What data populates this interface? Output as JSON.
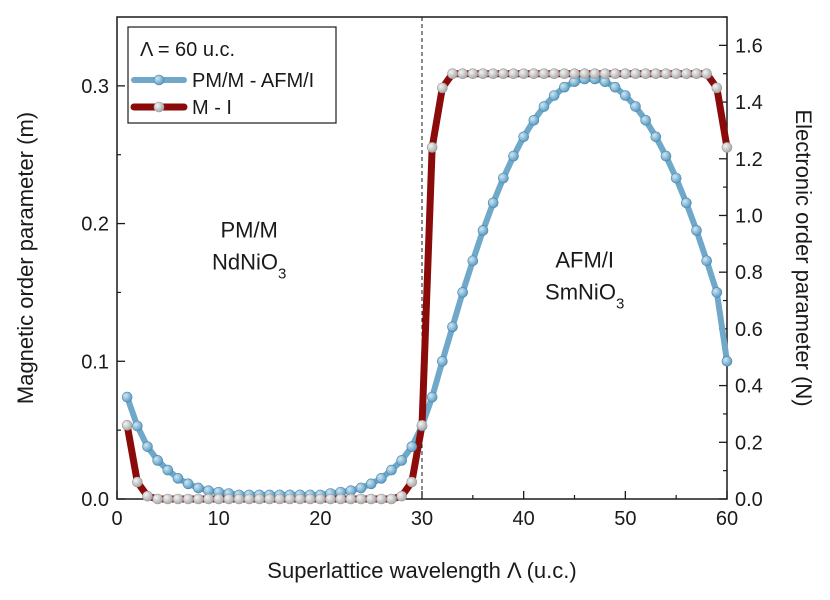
{
  "chart_data": {
    "type": "line",
    "title": "",
    "xlabel": "Superlattice wavelength Λ (u.c.)",
    "ylabel_left": "Magnetic order parameter (m)",
    "ylabel_right": "Electronic order parameter (N)",
    "xlim": [
      0,
      60
    ],
    "ylim_left": [
      0,
      0.35
    ],
    "ylim_right": [
      0,
      1.7
    ],
    "x_ticks": [
      "0",
      "10",
      "20",
      "30",
      "40",
      "50",
      "60"
    ],
    "y_left_ticks": [
      "0.0",
      "0.1",
      "0.2",
      "0.3"
    ],
    "y_right_ticks": [
      "0.0",
      "0.2",
      "0.4",
      "0.6",
      "0.8",
      "1.0",
      "1.2",
      "1.4",
      "1.6"
    ],
    "legend_title": "Λ = 60 u.c.",
    "legend_position": "top-left",
    "vline_x": 30,
    "annotations": [
      {
        "line1": "PM/M",
        "line2_base": "NdNiO",
        "line2_sub": "3",
        "x": 13,
        "y_left": 0.19
      },
      {
        "line1": "AFM/I",
        "line2_base": "SmNiO",
        "line2_sub": "3",
        "x": 46,
        "y_left": 0.168
      }
    ],
    "series": [
      {
        "name": "PM/M - AFM/I",
        "axis": "left",
        "line_color": "#6fa8c8",
        "marker_color": "#5b9dc3",
        "x": [
          1,
          2,
          3,
          4,
          5,
          6,
          7,
          8,
          9,
          10,
          11,
          12,
          13,
          14,
          15,
          16,
          17,
          18,
          19,
          20,
          21,
          22,
          23,
          24,
          25,
          26,
          27,
          28,
          29,
          30,
          31,
          32,
          33,
          34,
          35,
          36,
          37,
          38,
          39,
          40,
          41,
          42,
          43,
          44,
          45,
          46,
          47,
          48,
          49,
          50,
          51,
          52,
          53,
          54,
          55,
          56,
          57,
          58,
          59,
          60
        ],
        "values": [
          0.074,
          0.053,
          0.038,
          0.028,
          0.021,
          0.015,
          0.011,
          0.008,
          0.006,
          0.005,
          0.004,
          0.003,
          0.003,
          0.003,
          0.003,
          0.003,
          0.003,
          0.003,
          0.003,
          0.003,
          0.004,
          0.005,
          0.006,
          0.008,
          0.011,
          0.015,
          0.021,
          0.028,
          0.038,
          0.053,
          0.074,
          0.1,
          0.125,
          0.15,
          0.173,
          0.195,
          0.215,
          0.233,
          0.249,
          0.263,
          0.275,
          0.285,
          0.293,
          0.299,
          0.303,
          0.305,
          0.305,
          0.303,
          0.299,
          0.293,
          0.285,
          0.275,
          0.263,
          0.249,
          0.233,
          0.215,
          0.195,
          0.173,
          0.15,
          0.1
        ]
      },
      {
        "name": "M - I",
        "axis": "right",
        "line_color": "#8b0a0a",
        "marker_color": "#c8c8c8",
        "x": [
          1,
          2,
          3,
          4,
          5,
          6,
          7,
          8,
          9,
          10,
          11,
          12,
          13,
          14,
          15,
          16,
          17,
          18,
          19,
          20,
          21,
          22,
          23,
          24,
          25,
          26,
          27,
          28,
          29,
          30,
          31,
          32,
          33,
          34,
          35,
          36,
          37,
          38,
          39,
          40,
          41,
          42,
          43,
          44,
          45,
          46,
          47,
          48,
          49,
          50,
          51,
          52,
          53,
          54,
          55,
          56,
          57,
          58,
          59,
          60
        ],
        "values": [
          0.26,
          0.06,
          0.01,
          0,
          0,
          0,
          0,
          0,
          0,
          0,
          0,
          0,
          0,
          0,
          0,
          0,
          0,
          0,
          0,
          0,
          0,
          0,
          0,
          0,
          0,
          0,
          0,
          0.01,
          0.06,
          0.26,
          1.24,
          1.45,
          1.5,
          1.5,
          1.5,
          1.5,
          1.5,
          1.5,
          1.5,
          1.5,
          1.5,
          1.5,
          1.5,
          1.5,
          1.5,
          1.5,
          1.5,
          1.5,
          1.5,
          1.5,
          1.5,
          1.5,
          1.5,
          1.5,
          1.5,
          1.5,
          1.5,
          1.5,
          1.45,
          1.24
        ]
      }
    ]
  }
}
